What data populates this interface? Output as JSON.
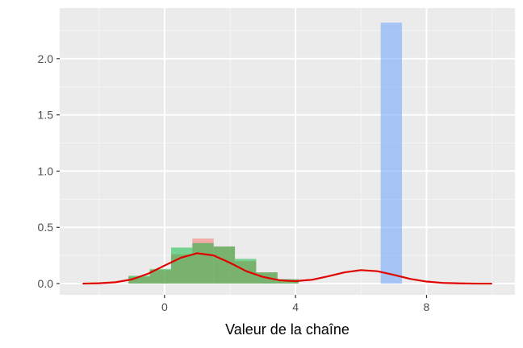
{
  "chart_data": {
    "type": "bar",
    "xlabel": "Valeur de la chaîne",
    "ylabel": "",
    "xlim": [
      -3.2,
      10.7
    ],
    "ylim": [
      -0.1,
      2.45
    ],
    "x_ticks": [
      0,
      4,
      8
    ],
    "x_tick_labels": [
      "0",
      "4",
      "8"
    ],
    "y_ticks": [
      0,
      0.5,
      1,
      1.5,
      2
    ],
    "y_tick_labels": [
      "0.0",
      "0.5",
      "1.0",
      "1.5",
      "2.0"
    ],
    "grid": true,
    "bin_width": 0.65,
    "series": [
      {
        "kind": "histogram",
        "color": "#F8766D",
        "opacity": 0.55,
        "bins": [
          {
            "x0": -1.1,
            "value": 0.06
          },
          {
            "x0": -0.45,
            "value": 0.12
          },
          {
            "x0": 0.2,
            "value": 0.26
          },
          {
            "x0": 0.85,
            "value": 0.4
          },
          {
            "x0": 1.5,
            "value": 0.33
          },
          {
            "x0": 2.15,
            "value": 0.2
          },
          {
            "x0": 2.8,
            "value": 0.1
          },
          {
            "x0": 3.45,
            "value": 0.03
          }
        ]
      },
      {
        "kind": "histogram",
        "color": "#00BA38",
        "opacity": 0.5,
        "bins": [
          {
            "x0": -1.1,
            "value": 0.07
          },
          {
            "x0": -0.45,
            "value": 0.13
          },
          {
            "x0": 0.2,
            "value": 0.32
          },
          {
            "x0": 0.85,
            "value": 0.36
          },
          {
            "x0": 1.5,
            "value": 0.33
          },
          {
            "x0": 2.15,
            "value": 0.22
          },
          {
            "x0": 2.8,
            "value": 0.1
          },
          {
            "x0": 3.45,
            "value": 0.04
          }
        ]
      },
      {
        "kind": "histogram",
        "color": "#619CFF",
        "opacity": 0.5,
        "bins": [
          {
            "x0": 6.6,
            "value": 2.32
          }
        ]
      },
      {
        "kind": "density",
        "color": "#E00000",
        "x": [
          -2.5,
          -2.0,
          -1.5,
          -1.0,
          -0.5,
          0.0,
          0.5,
          1.0,
          1.5,
          2.0,
          2.5,
          3.0,
          3.5,
          4.0,
          4.5,
          5.0,
          5.5,
          6.0,
          6.5,
          7.0,
          7.5,
          8.0,
          8.5,
          9.0,
          9.5,
          10.0
        ],
        "y": [
          0.0,
          0.003,
          0.012,
          0.037,
          0.088,
          0.16,
          0.23,
          0.27,
          0.25,
          0.185,
          0.11,
          0.06,
          0.03,
          0.022,
          0.034,
          0.065,
          0.1,
          0.12,
          0.11,
          0.078,
          0.042,
          0.018,
          0.006,
          0.002,
          0.0,
          0.0
        ]
      }
    ]
  }
}
